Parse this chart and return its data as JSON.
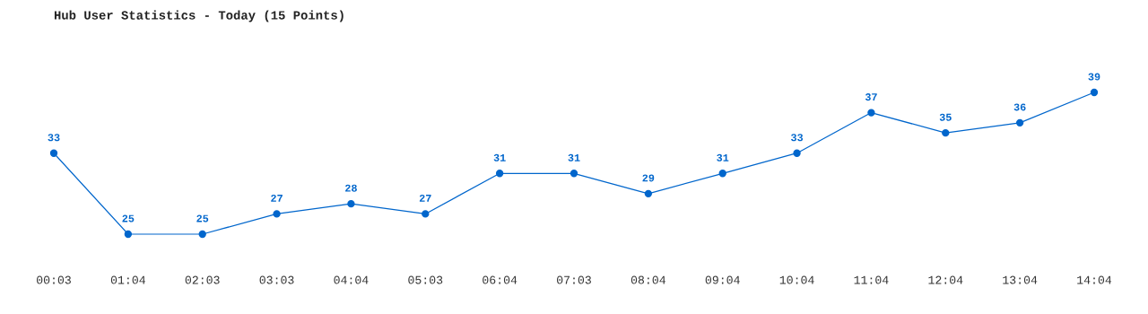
{
  "chart_data": {
    "type": "line",
    "title": "Hub User Statistics - Today (15 Points)",
    "categories": [
      "00:03",
      "01:04",
      "02:03",
      "03:03",
      "04:04",
      "05:03",
      "06:04",
      "07:03",
      "08:04",
      "09:04",
      "10:04",
      "11:04",
      "12:04",
      "13:04",
      "14:04"
    ],
    "values": [
      33,
      25,
      25,
      27,
      28,
      27,
      31,
      31,
      29,
      31,
      33,
      37,
      35,
      36,
      39
    ],
    "color": "#0066cc",
    "data_labels": true,
    "marker": "circle",
    "line_style": "solid",
    "grid": false,
    "legend": false
  }
}
